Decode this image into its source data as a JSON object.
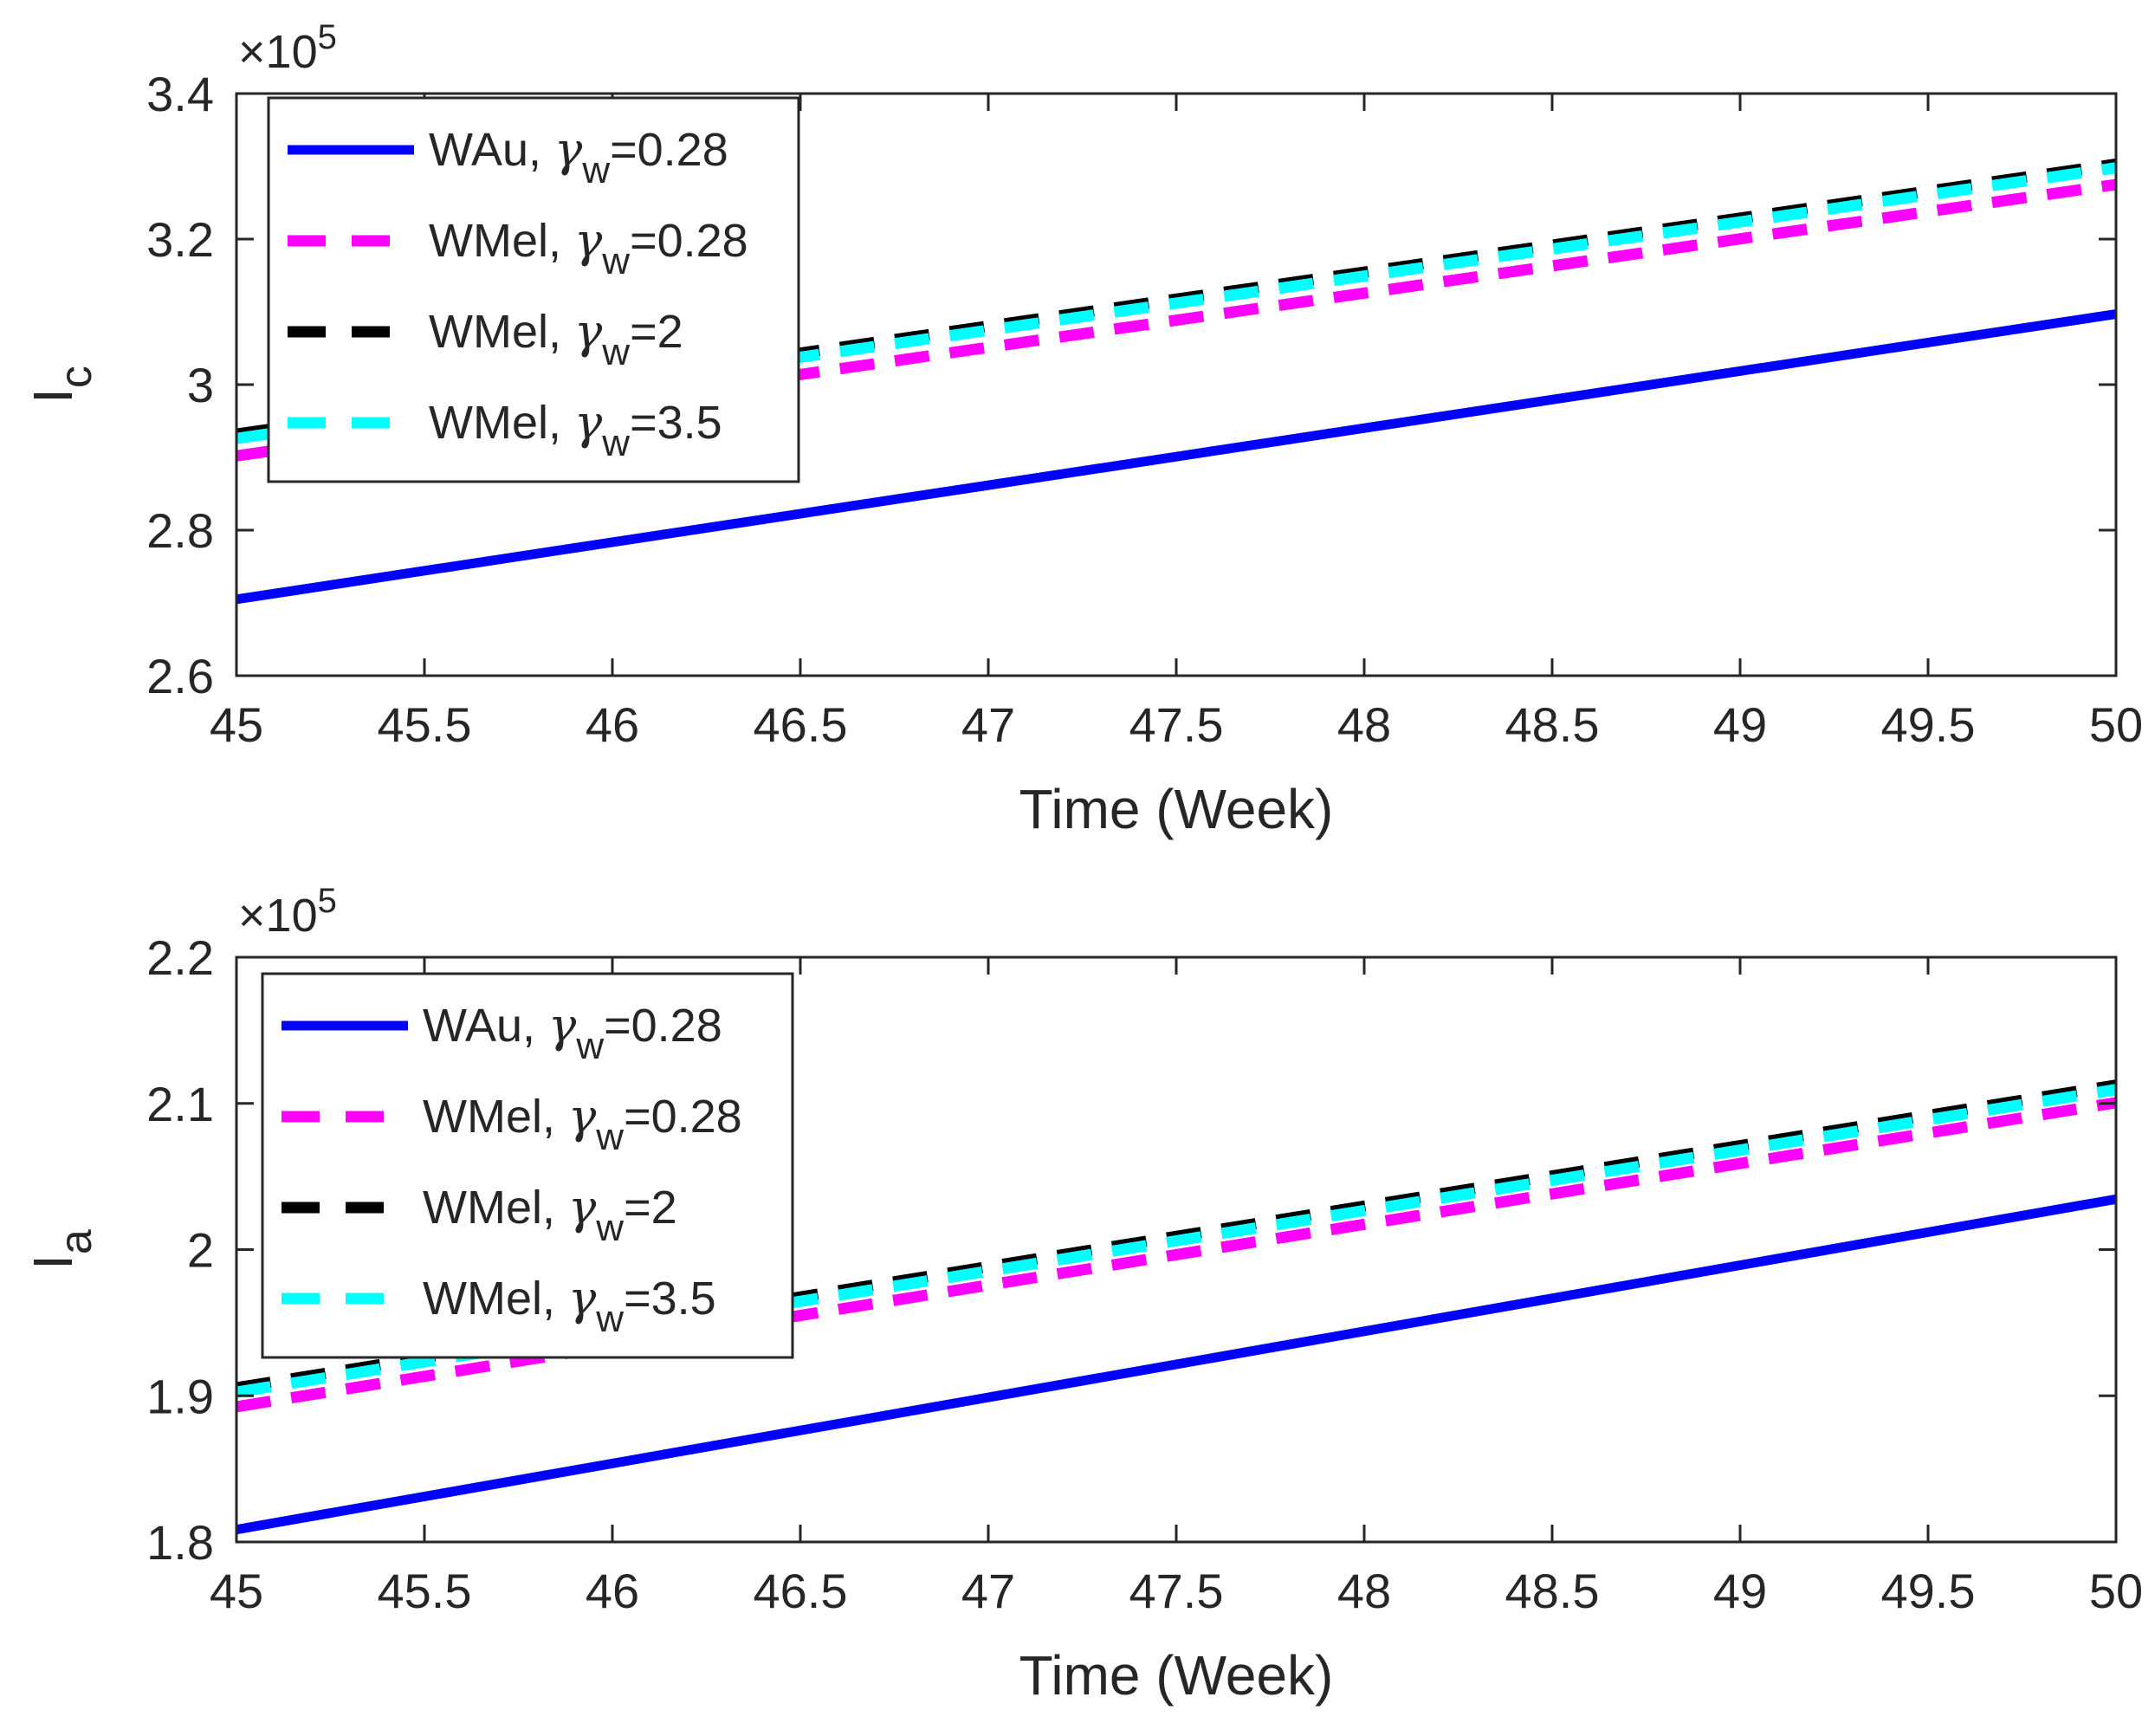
{
  "chart_data": [
    {
      "type": "line",
      "id": "top",
      "xlabel": "Time (Week)",
      "ylabel": "I",
      "ylabel_sub": "c",
      "multiplier": {
        "base": "×10",
        "exponent": "5"
      },
      "xlim": [
        45,
        50
      ],
      "ylim": [
        2.6,
        3.4
      ],
      "xticks": [
        "45",
        "45.5",
        "46",
        "46.5",
        "47",
        "47.5",
        "48",
        "48.5",
        "49",
        "49.5",
        "50"
      ],
      "yticks": [
        "2.6",
        "2.8",
        "3",
        "3.2",
        "3.4"
      ],
      "grid": false,
      "legend_position": "top-left",
      "series": [
        {
          "name": "WAu",
          "gamma": "=0.28",
          "color": "#0000ff",
          "style": "solid",
          "x": [
            45,
            50
          ],
          "y": [
            2.705,
            3.097
          ]
        },
        {
          "name": "WMel",
          "gamma": "=0.28",
          "color": "#ff00ff",
          "style": "dashed",
          "x": [
            45,
            50
          ],
          "y": [
            2.902,
            3.275
          ]
        },
        {
          "name": "WMel",
          "gamma": "=2",
          "color": "#000000",
          "style": "dashed",
          "x": [
            45,
            50
          ],
          "y": [
            2.932,
            3.303
          ]
        },
        {
          "name": "WMel",
          "gamma": "=3.5",
          "color": "#00ffff",
          "style": "dashed",
          "x": [
            45,
            50
          ],
          "y": [
            2.926,
            3.298
          ]
        }
      ]
    },
    {
      "type": "line",
      "id": "bottom",
      "xlabel": "Time (Week)",
      "ylabel": "I",
      "ylabel_sub": "a",
      "multiplier": {
        "base": "×10",
        "exponent": "5"
      },
      "xlim": [
        45,
        50
      ],
      "ylim": [
        1.8,
        2.2
      ],
      "xticks": [
        "45",
        "45.5",
        "46",
        "46.5",
        "47",
        "47.5",
        "48",
        "48.5",
        "49",
        "49.5",
        "50"
      ],
      "yticks": [
        "1.8",
        "1.9",
        "2",
        "2.1",
        "2.2"
      ],
      "grid": false,
      "legend_position": "top-left",
      "series": [
        {
          "name": "WAu",
          "gamma": "=0.28",
          "color": "#0000ff",
          "style": "solid",
          "x": [
            45,
            50
          ],
          "y": [
            1.8085,
            2.0345
          ]
        },
        {
          "name": "WMel",
          "gamma": "=0.28",
          "color": "#ff00ff",
          "style": "dashed",
          "x": [
            45,
            50
          ],
          "y": [
            1.8925,
            2.1005
          ]
        },
        {
          "name": "WMel",
          "gamma": "=2",
          "color": "#000000",
          "style": "dashed",
          "x": [
            45,
            50
          ],
          "y": [
            1.9055,
            2.1125
          ]
        },
        {
          "name": "WMel",
          "gamma": "=3.5",
          "color": "#00ffff",
          "style": "dashed",
          "x": [
            45,
            50
          ],
          "y": [
            1.9025,
            2.1095
          ]
        }
      ]
    }
  ],
  "legend_symbol": {
    "greek": "γ",
    "sub": "w"
  }
}
